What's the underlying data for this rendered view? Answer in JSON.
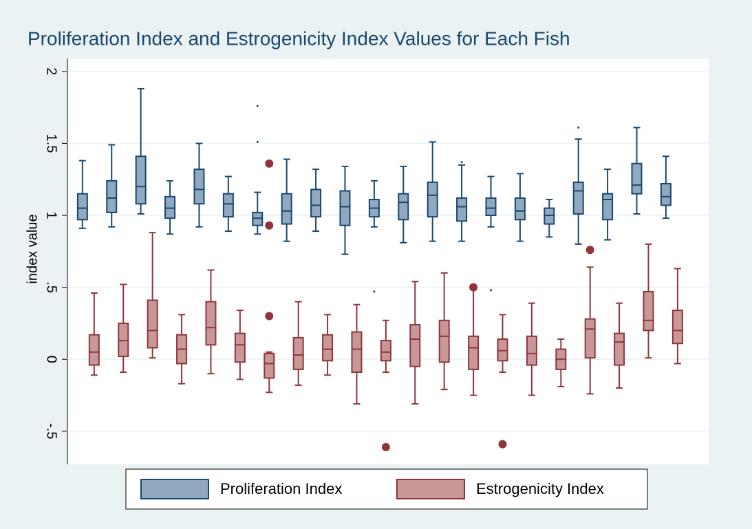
{
  "chart_data": {
    "type": "box",
    "title": "Proliferation Index and Estrogenicity Index Values for Each Fish",
    "y_label": "index value",
    "categories": [
      null,
      null,
      null,
      null,
      null,
      null,
      null,
      null,
      null,
      null,
      null,
      null,
      null,
      null,
      null,
      null,
      null,
      null,
      null,
      null,
      null
    ],
    "ylim": [
      -0.73,
      2.09
    ],
    "yticks": [
      {
        "value": -0.5,
        "label": "-.5"
      },
      0,
      {
        "value": 0.5,
        "label": ".5"
      },
      1,
      1.5,
      2
    ],
    "grid": true,
    "legend": "bottom",
    "series": [
      {
        "name": "Proliferation Index",
        "color": "#1a476f",
        "fill": "#90a8c0",
        "whisker_low": [
          0.91,
          0.92,
          1.01,
          0.87,
          0.92,
          0.89,
          0.87,
          0.82,
          0.89,
          0.73,
          0.92,
          0.81,
          0.82,
          0.82,
          0.92,
          0.82,
          0.85,
          0.8,
          0.83,
          1.01,
          0.98
        ],
        "q1": [
          0.97,
          1.02,
          1.08,
          0.98,
          1.08,
          0.99,
          0.93,
          0.94,
          0.99,
          0.93,
          0.99,
          0.97,
          0.99,
          0.96,
          1.0,
          0.97,
          0.94,
          1.01,
          0.97,
          1.15,
          1.07
        ],
        "median": [
          1.05,
          1.12,
          1.2,
          1.05,
          1.18,
          1.08,
          0.98,
          1.03,
          1.07,
          1.06,
          1.05,
          1.09,
          1.14,
          1.06,
          1.05,
          1.03,
          1.0,
          1.17,
          1.11,
          1.21,
          1.13
        ],
        "q3": [
          1.15,
          1.24,
          1.41,
          1.13,
          1.32,
          1.15,
          1.02,
          1.15,
          1.18,
          1.17,
          1.11,
          1.15,
          1.23,
          1.12,
          1.12,
          1.12,
          1.05,
          1.23,
          1.15,
          1.36,
          1.22
        ],
        "whisker_high": [
          1.38,
          1.49,
          1.88,
          1.24,
          1.5,
          1.27,
          1.16,
          1.39,
          1.32,
          1.34,
          1.24,
          1.34,
          1.51,
          1.35,
          1.27,
          1.29,
          1.11,
          1.53,
          1.32,
          1.61,
          1.41
        ],
        "outliers": [
          [],
          [],
          [],
          [],
          [],
          [],
          [
            1.51,
            1.76
          ],
          [],
          [],
          [],
          [
            0.47
          ],
          [],
          [],
          [
            1.37
          ],
          [
            0.48
          ],
          [],
          [],
          [
            1.61
          ],
          [],
          [],
          []
        ]
      },
      {
        "name": "Estrogenicity Index",
        "color": "#90353b",
        "fill": "#c89898",
        "whisker_low": [
          -0.11,
          -0.09,
          0.01,
          -0.17,
          -0.1,
          -0.14,
          -0.23,
          -0.18,
          -0.11,
          -0.31,
          -0.09,
          -0.31,
          -0.21,
          -0.25,
          -0.09,
          -0.25,
          -0.19,
          -0.24,
          -0.2,
          0.01,
          -0.03
        ],
        "q1": [
          -0.04,
          0.02,
          0.08,
          -0.03,
          0.1,
          -0.02,
          -0.13,
          -0.07,
          -0.01,
          -0.09,
          -0.01,
          -0.05,
          -0.02,
          -0.07,
          -0.01,
          -0.04,
          -0.07,
          0.01,
          -0.04,
          0.2,
          0.11
        ],
        "median": [
          0.05,
          0.13,
          0.2,
          0.07,
          0.22,
          0.1,
          -0.03,
          0.03,
          0.07,
          0.07,
          0.05,
          0.14,
          0.16,
          0.08,
          0.06,
          0.04,
          0.0,
          0.21,
          0.12,
          0.27,
          0.2
        ],
        "q3": [
          0.17,
          0.25,
          0.41,
          0.17,
          0.4,
          0.18,
          0.04,
          0.15,
          0.17,
          0.19,
          0.13,
          0.24,
          0.27,
          0.16,
          0.14,
          0.16,
          0.07,
          0.28,
          0.18,
          0.47,
          0.34
        ],
        "whisker_high": [
          0.46,
          0.52,
          0.88,
          0.31,
          0.62,
          0.34,
          0.05,
          0.4,
          0.31,
          0.38,
          0.27,
          0.54,
          0.6,
          0.49,
          0.31,
          0.39,
          0.14,
          0.64,
          0.39,
          0.8,
          0.63
        ],
        "outliers": [
          [],
          [],
          [],
          [],
          [],
          [],
          [
            0.3,
            0.93,
            1.36
          ],
          [],
          [],
          [],
          [
            -0.61
          ],
          [],
          [],
          [
            0.5
          ],
          [
            -0.59
          ],
          [],
          [],
          [
            0.76
          ],
          [],
          [],
          []
        ]
      }
    ]
  }
}
